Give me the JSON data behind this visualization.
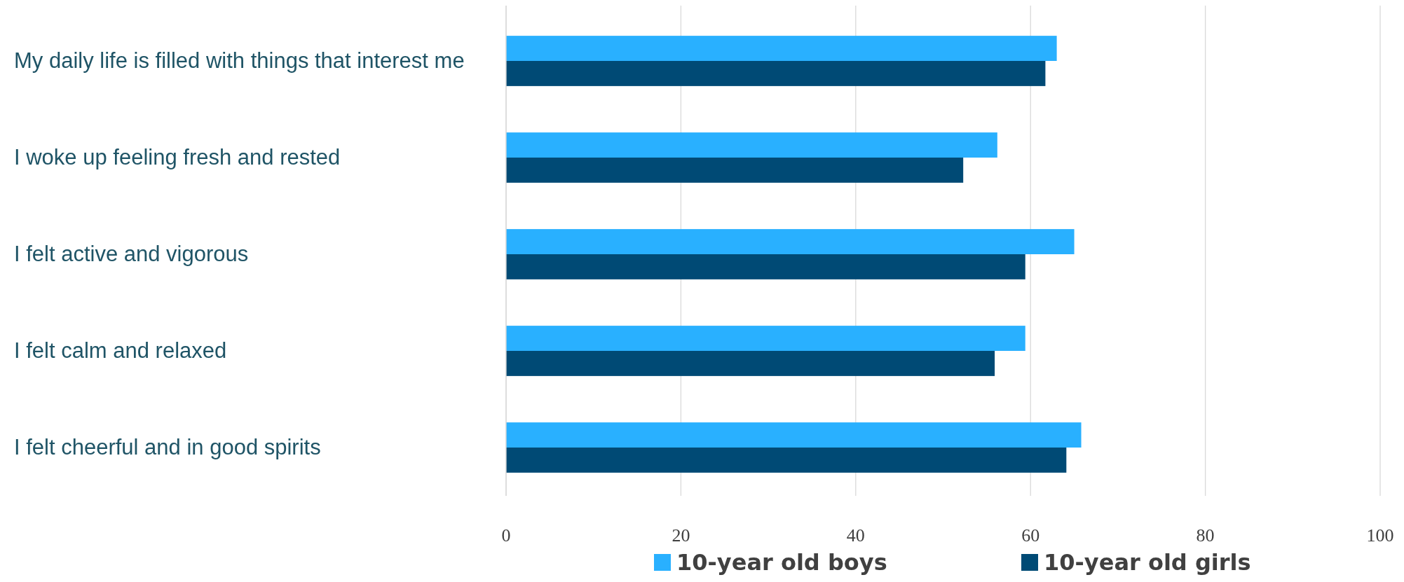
{
  "chart_data": {
    "type": "bar",
    "orientation": "horizontal",
    "categories": [
      "My daily life is filled with things that interest me",
      "I woke up feeling fresh and rested",
      "I felt active and vigorous",
      "I felt calm and relaxed",
      "I felt cheerful and in good spirits"
    ],
    "series": [
      {
        "name": "10-year old boys",
        "color": "#29b0ff",
        "values": [
          63,
          56.2,
          65,
          59.4,
          65.8
        ]
      },
      {
        "name": "10-year old girls",
        "color": "#004a75",
        "values": [
          61.7,
          52.3,
          59.4,
          55.9,
          64.1
        ]
      }
    ],
    "xlim": [
      0,
      100
    ],
    "xticks": [
      0,
      20,
      40,
      60,
      80,
      100
    ],
    "grid": "x",
    "legend": "bottom"
  }
}
